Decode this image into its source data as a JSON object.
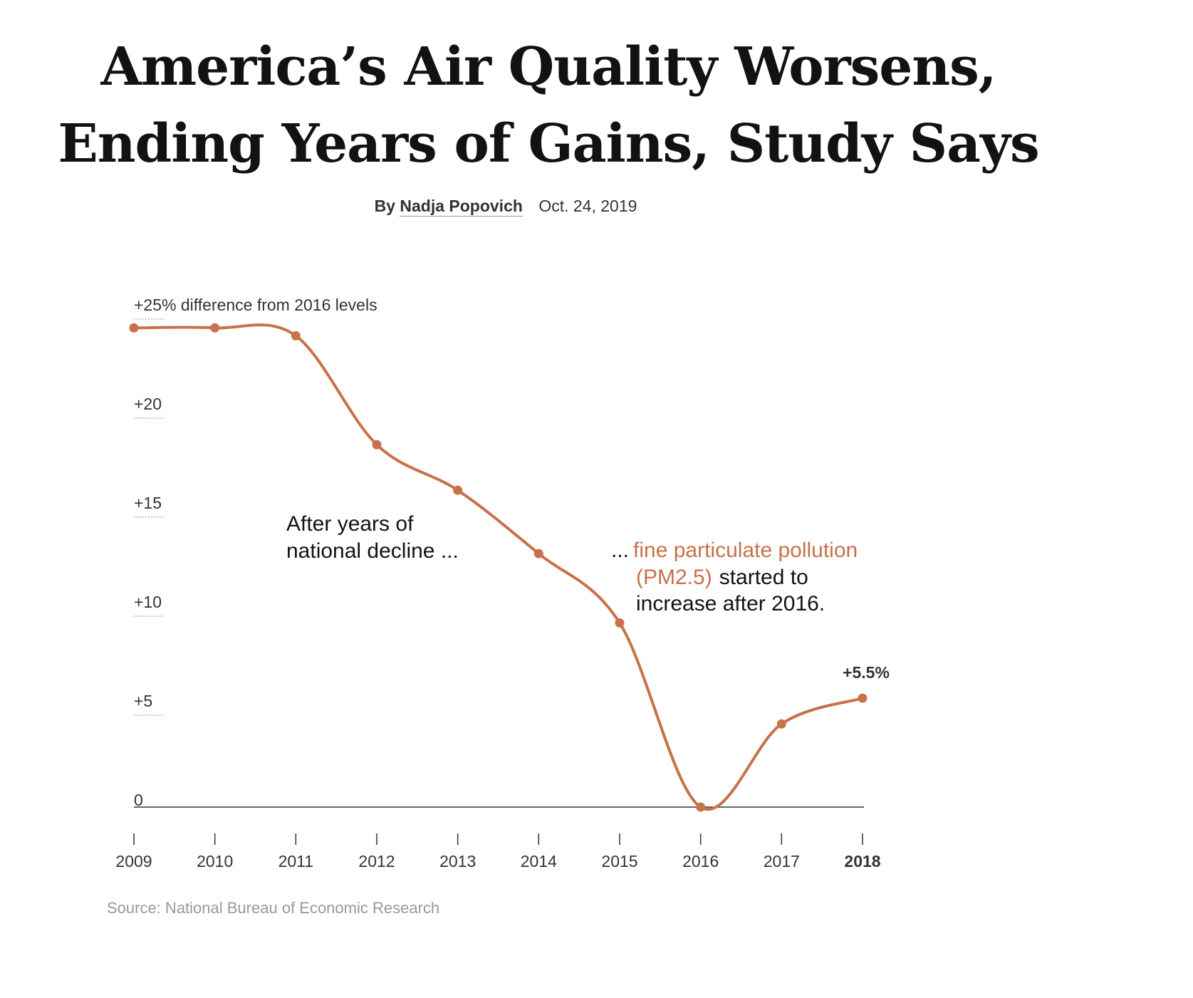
{
  "headline": {
    "line1": "America’s Air Quality Worsens,",
    "line2": "Ending Years of Gains, Study Says"
  },
  "byline": {
    "prefix": "By",
    "author": "Nadja Popovich",
    "date": "Oct. 24, 2019"
  },
  "chart_data": {
    "type": "line",
    "title": "",
    "xlabel": "",
    "ylabel": "+25% difference from 2016 levels",
    "x": [
      "2009",
      "2010",
      "2011",
      "2012",
      "2013",
      "2014",
      "2015",
      "2016",
      "2017",
      "2018"
    ],
    "series": [
      {
        "values": [
          24.2,
          24.2,
          23.8,
          18.3,
          16.0,
          12.8,
          9.3,
          0,
          4.2,
          5.5
        ]
      }
    ],
    "ylim": [
      0,
      25
    ],
    "y_ticks": [
      {
        "value": 25,
        "label": "+25% difference from 2016 levels"
      },
      {
        "value": 20,
        "label": "+20"
      },
      {
        "value": 15,
        "label": "+15"
      },
      {
        "value": 10,
        "label": "+10"
      },
      {
        "value": 5,
        "label": "+5"
      },
      {
        "value": 0,
        "label": "0"
      }
    ],
    "highlight_x": "2018",
    "end_label": "+5.5%",
    "line_color": "#c8714a",
    "annotations": {
      "left_line1": "After years of",
      "left_line2": "national decline ...",
      "right_prefix": "...",
      "right_hl_line1": "fine particulate pollution",
      "right_hl_line2": "(PM2.5)",
      "right_line2_rest": "started to",
      "right_line3": "increase after 2016."
    },
    "grid": false
  },
  "source": "Source: National Bureau of Economic Research"
}
